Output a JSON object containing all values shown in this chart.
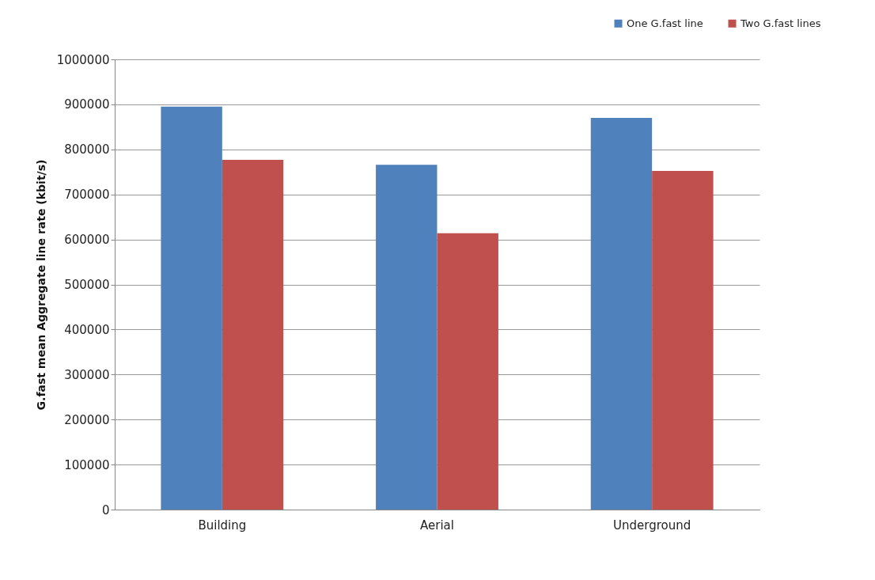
{
  "chart_data": {
    "type": "bar",
    "ylabel": "G.fast mean Aggregate line rate (kbit/s)",
    "categories": [
      "Building",
      "Aerial",
      "Underground"
    ],
    "series": [
      {
        "name": "One G.fast line",
        "color": "#4f81bd",
        "values": [
          895000,
          766000,
          870000
        ]
      },
      {
        "name": "Two G.fast lines",
        "color": "#c0504d",
        "values": [
          777000,
          614000,
          752000
        ]
      }
    ],
    "ylim": [
      0,
      1000000
    ],
    "yticks": [
      0,
      100000,
      200000,
      300000,
      400000,
      500000,
      600000,
      700000,
      800000,
      900000,
      1000000
    ],
    "grid": "y",
    "legend": "top right"
  }
}
